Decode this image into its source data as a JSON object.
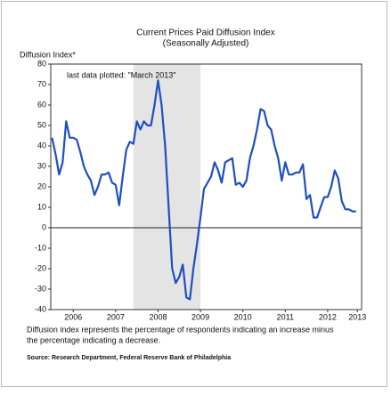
{
  "chart_data": {
    "type": "line",
    "title": "Current Prices Paid Diffusion Index",
    "subtitle": "(Seasonally Adjusted)",
    "y_label": "Diffusion Index*",
    "annotation": "last data plotted: \"March 2013\"",
    "note": [
      "Diffusion index represents the percentage of respondents indicating an increase minus",
      "the percentage indicating a decrease."
    ],
    "source": "Source: Research Department, Federal Reserve Bank of Philadelphia",
    "color": "#1f4fc0",
    "shade": {
      "x": [
        2007.92,
        2009.5
      ],
      "color": "#e4e4e4"
    },
    "xlim": [
      2005.97,
      2013.3
    ],
    "ylim": [
      -40,
      80
    ],
    "yticks": [
      -40,
      -30,
      -20,
      -10,
      0,
      10,
      20,
      30,
      40,
      50,
      60,
      70,
      80
    ],
    "xticks": [
      {
        "value": 2006.5,
        "label": "2006"
      },
      {
        "value": 2007.5,
        "label": "2007"
      },
      {
        "value": 2008.5,
        "label": "2008"
      },
      {
        "value": 2009.5,
        "label": "2009"
      },
      {
        "value": 2010.5,
        "label": "2010"
      },
      {
        "value": 2011.5,
        "label": "2011"
      },
      {
        "value": 2012.5,
        "label": "2012"
      },
      {
        "value": 2013.2,
        "label": "2013"
      }
    ],
    "x": [
      2006.0,
      2006.083,
      2006.167,
      2006.25,
      2006.333,
      2006.417,
      2006.5,
      2006.583,
      2006.667,
      2006.75,
      2006.833,
      2006.917,
      2007.0,
      2007.083,
      2007.167,
      2007.25,
      2007.333,
      2007.417,
      2007.5,
      2007.583,
      2007.667,
      2007.75,
      2007.833,
      2007.917,
      2008.0,
      2008.083,
      2008.167,
      2008.25,
      2008.333,
      2008.417,
      2008.5,
      2008.583,
      2008.667,
      2008.75,
      2008.833,
      2008.917,
      2009.0,
      2009.083,
      2009.167,
      2009.25,
      2009.333,
      2009.417,
      2009.5,
      2009.583,
      2009.667,
      2009.75,
      2009.833,
      2009.917,
      2010.0,
      2010.083,
      2010.167,
      2010.25,
      2010.333,
      2010.417,
      2010.5,
      2010.583,
      2010.667,
      2010.75,
      2010.833,
      2010.917,
      2011.0,
      2011.083,
      2011.167,
      2011.25,
      2011.333,
      2011.417,
      2011.5,
      2011.583,
      2011.667,
      2011.75,
      2011.833,
      2011.917,
      2012.0,
      2012.083,
      2012.167,
      2012.25,
      2012.333,
      2012.417,
      2012.5,
      2012.583,
      2012.667,
      2012.75,
      2012.833,
      2012.917,
      2013.0,
      2013.083,
      2013.167
    ],
    "values": [
      44,
      36,
      26,
      32,
      52,
      44,
      44,
      43,
      37,
      30,
      26,
      23,
      16,
      20,
      26,
      26,
      27,
      22,
      21,
      11,
      25,
      38,
      42,
      41,
      52,
      48,
      52,
      50,
      50,
      60,
      72,
      60,
      40,
      10,
      -20,
      -27,
      -24,
      -18,
      -34,
      -35,
      -20,
      -8,
      5,
      19,
      22,
      25,
      32,
      28,
      22,
      32,
      33,
      34,
      21,
      22,
      20,
      23,
      34,
      40,
      48,
      58,
      57,
      50,
      48,
      40,
      34,
      23,
      32,
      26,
      26,
      27,
      27,
      31,
      14,
      16,
      5,
      5,
      10,
      15,
      15,
      20,
      28,
      24,
      13,
      9,
      9,
      8,
      8
    ]
  }
}
